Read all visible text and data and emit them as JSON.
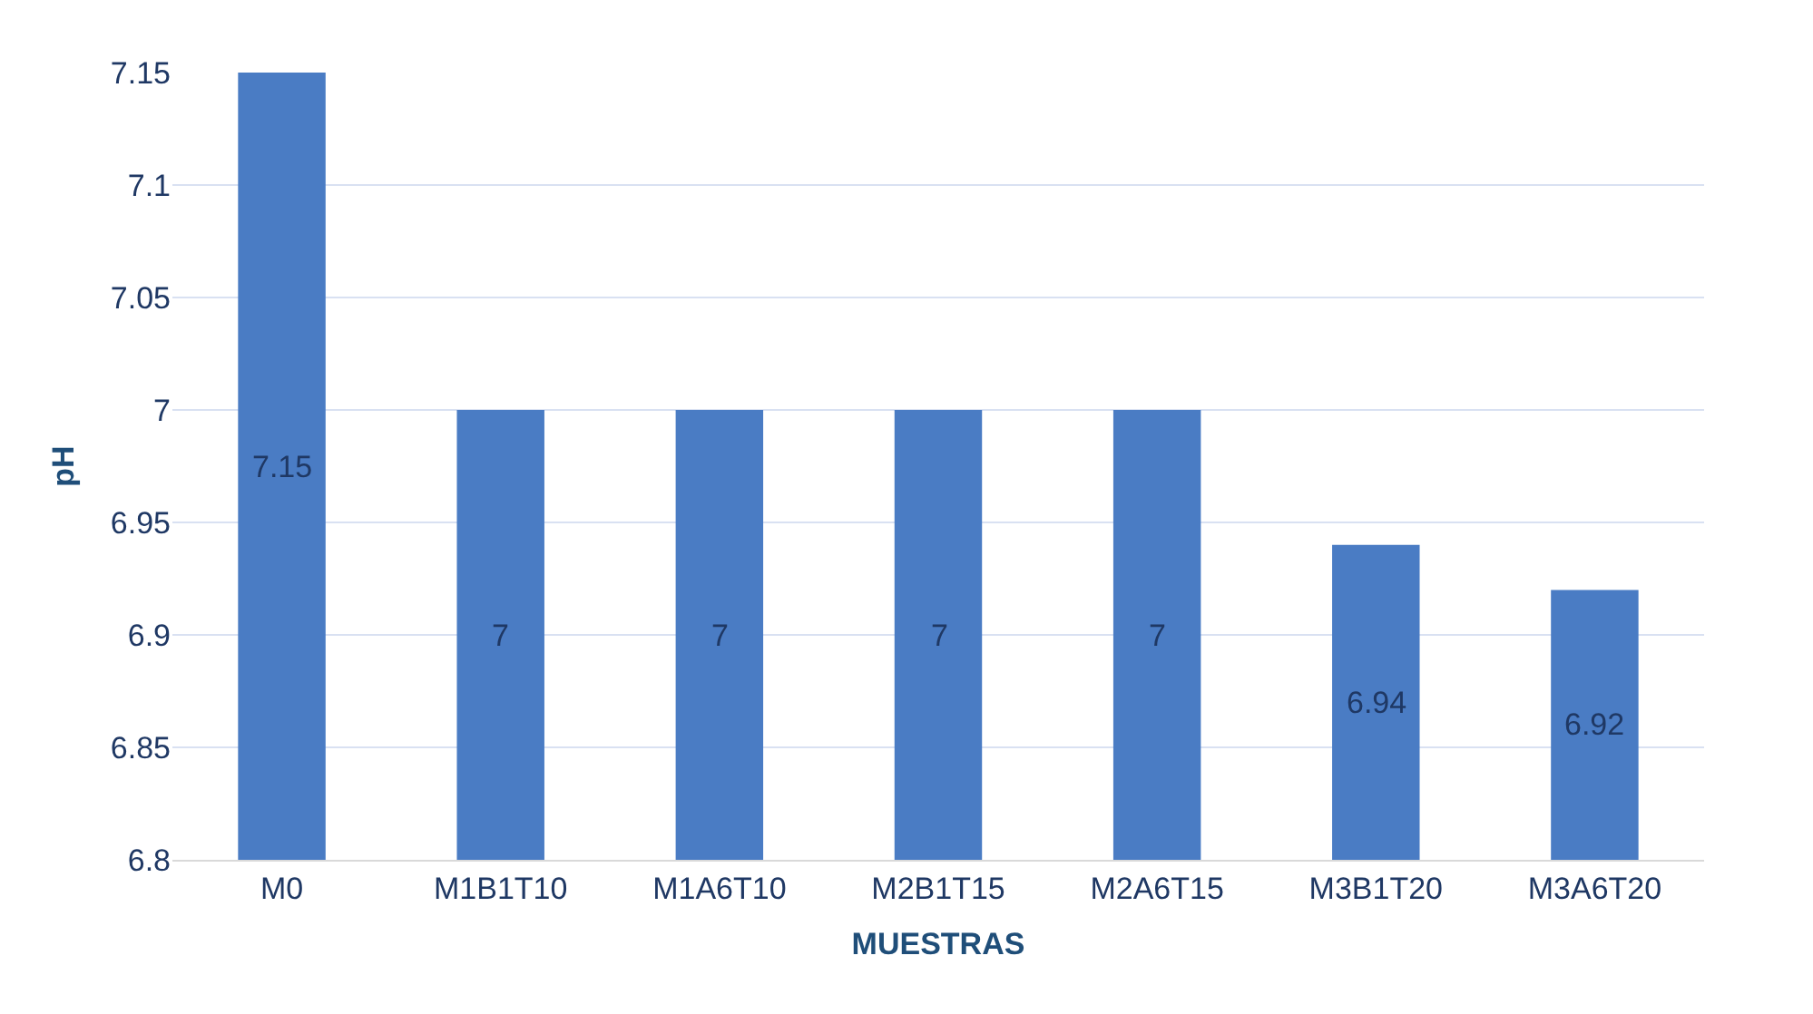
{
  "chart_data": {
    "type": "bar",
    "xlabel": "MUESTRAS",
    "ylabel": "pH",
    "categories": [
      "M0",
      "M1B1T10",
      "M1A6T10",
      "M2B1T15",
      "M2A6T15",
      "M3B1T20",
      "M3A6T20"
    ],
    "values": [
      7.15,
      7,
      7,
      7,
      7,
      6.94,
      6.92
    ],
    "color": "#4a7cc4",
    "ylim": [
      6.8,
      7.15
    ],
    "yticks": [
      6.8,
      6.85,
      6.9,
      6.95,
      7,
      7.05,
      7.1,
      7.15
    ],
    "grid": "y",
    "data_labels": true
  }
}
